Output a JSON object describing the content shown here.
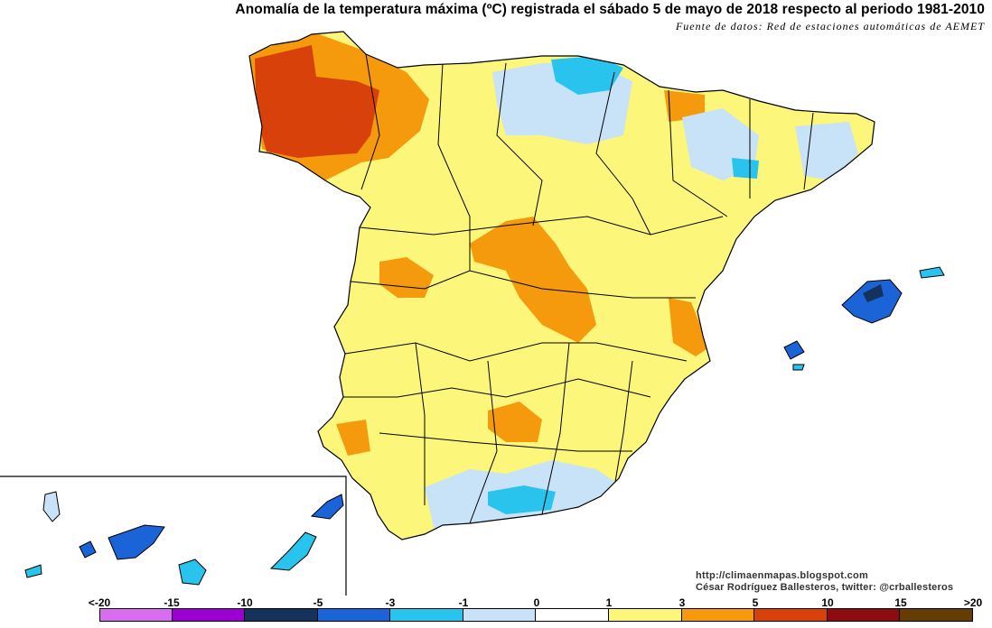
{
  "header": {
    "title": "Anomalía de la temperatura máxima (ºC) registrada el sábado 5 de mayo de 2018 respecto al periodo 1981-2010",
    "source": "Fuente de datos: Red de estaciones automáticas de AEMET"
  },
  "credits": {
    "blog": "http://climaenmapas.blogspot.com",
    "author": "César Rodríguez Ballesteros, twitter: @crballesteros"
  },
  "legend": {
    "ticks": [
      "<-20",
      "-15",
      "-10",
      "-5",
      "-3",
      "-1",
      "0",
      "1",
      "3",
      "5",
      "10",
      "15",
      ">20"
    ],
    "bins": [
      {
        "range": "<-20 a -15",
        "color": "#d86df0"
      },
      {
        "range": "-15 a -10",
        "color": "#9b00d2"
      },
      {
        "range": "-10 a -5",
        "color": "#14325c"
      },
      {
        "range": "-5 a -3",
        "color": "#1a64d8"
      },
      {
        "range": "-3 a -1",
        "color": "#28c4ee"
      },
      {
        "range": "-1 a 0",
        "color": "#c8e2f8"
      },
      {
        "range": "0 a 1",
        "color": "#ffffff"
      },
      {
        "range": "1 a 3",
        "color": "#fcf67a"
      },
      {
        "range": "3 a 5",
        "color": "#f49a0c"
      },
      {
        "range": "5 a 10",
        "color": "#d8420a"
      },
      {
        "range": "10 a 15",
        "color": "#8c0c10"
      },
      {
        "range": "15 a >20",
        "color": "#643c04"
      }
    ]
  },
  "colors": {
    "land_base": "#fcf67a",
    "warm": "#f49a0c",
    "hot": "#d8420a",
    "cool": "#c8e2f8",
    "cold": "#28c4ee",
    "colder": "#1a64d8",
    "coldest": "#14325c"
  }
}
